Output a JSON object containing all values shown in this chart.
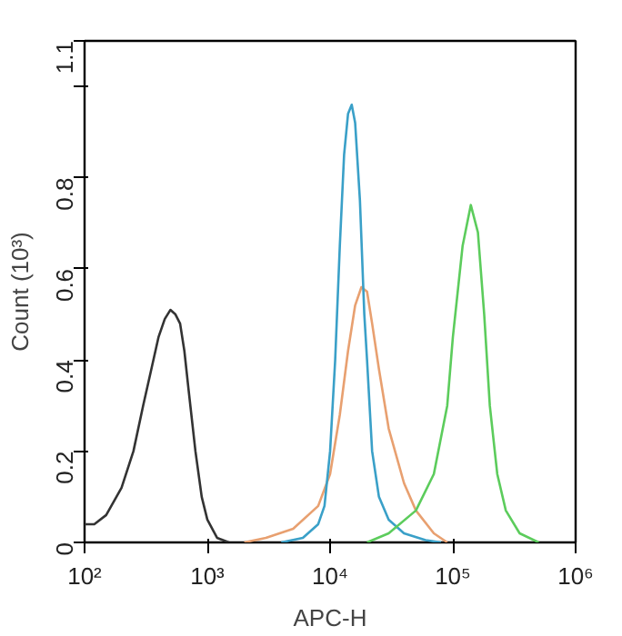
{
  "chart_data": {
    "type": "line",
    "xlabel": "APC-H",
    "ylabel": "Count (10³)",
    "log": "x",
    "grid": false,
    "marker": "none",
    "line_style": "solid",
    "xlim": [
      100,
      1000000
    ],
    "ylim": [
      0,
      1.1
    ],
    "xticks": [
      {
        "value": 100,
        "label": "10²"
      },
      {
        "value": 1000,
        "label": "10³"
      },
      {
        "value": 10000,
        "label": "10⁴"
      },
      {
        "value": 100000,
        "label": "10⁵"
      },
      {
        "value": 1000000,
        "label": "10⁶"
      }
    ],
    "yticks": [
      0,
      0.2,
      0.4,
      0.6,
      0.8,
      {
        "value": 1.0,
        "label": null
      },
      1.1
    ],
    "series": [
      {
        "color": "#333333",
        "x": [
          100,
          120,
          150,
          200,
          250,
          300,
          350,
          400,
          450,
          500,
          550,
          600,
          650,
          700,
          800,
          900,
          1000,
          1200,
          1500
        ],
        "values": [
          0.04,
          0.04,
          0.06,
          0.12,
          0.2,
          0.3,
          0.38,
          0.45,
          0.49,
          0.51,
          0.5,
          0.48,
          0.42,
          0.34,
          0.2,
          0.1,
          0.05,
          0.01,
          0
        ]
      },
      {
        "color": "#e8a070",
        "x": [
          2000,
          3000,
          5000,
          8000,
          10000,
          12000,
          14000,
          16000,
          18000,
          20000,
          22000,
          25000,
          30000,
          40000,
          50000,
          70000,
          90000
        ],
        "values": [
          0,
          0.01,
          0.03,
          0.08,
          0.15,
          0.28,
          0.42,
          0.52,
          0.56,
          0.55,
          0.48,
          0.38,
          0.25,
          0.13,
          0.07,
          0.02,
          0
        ]
      },
      {
        "color": "#3aa0c8",
        "x": [
          4000,
          6000,
          8000,
          9000,
          10000,
          11000,
          12000,
          13000,
          14000,
          15000,
          16000,
          17500,
          19000,
          20000,
          22000,
          25000,
          30000,
          40000,
          60000,
          80000
        ],
        "values": [
          0,
          0.01,
          0.04,
          0.08,
          0.2,
          0.4,
          0.65,
          0.85,
          0.94,
          0.96,
          0.92,
          0.75,
          0.5,
          0.4,
          0.2,
          0.1,
          0.05,
          0.02,
          0.005,
          0
        ]
      },
      {
        "color": "#5ccc5c",
        "x": [
          20000,
          30000,
          50000,
          70000,
          90000,
          100000,
          120000,
          140000,
          160000,
          180000,
          200000,
          230000,
          270000,
          350000,
          500000
        ],
        "values": [
          0,
          0.02,
          0.07,
          0.15,
          0.3,
          0.45,
          0.65,
          0.74,
          0.68,
          0.5,
          0.3,
          0.15,
          0.07,
          0.02,
          0
        ]
      }
    ]
  }
}
